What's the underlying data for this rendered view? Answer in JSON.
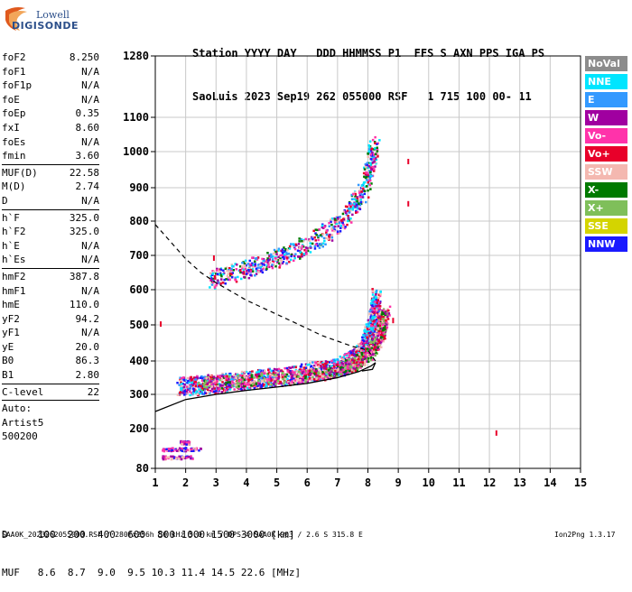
{
  "logo": {
    "line1": "Lowell",
    "line2": "DIGISONDE"
  },
  "header": {
    "line1": "Station YYYY DAY   DDD HHMMSS P1  FFS S AXN PPS IGA PS",
    "line2": "SaoLuis 2023 Sep19 262 055000 RSF   1 715 100 00- 11"
  },
  "params": [
    {
      "name": "foF2",
      "value": "8.250"
    },
    {
      "name": "foF1",
      "value": "N/A"
    },
    {
      "name": "foF1p",
      "value": "N/A"
    },
    {
      "name": "foE",
      "value": "N/A"
    },
    {
      "name": "foEp",
      "value": "0.35"
    },
    {
      "name": "fxI",
      "value": "8.60"
    },
    {
      "name": "foEs",
      "value": "N/A"
    },
    {
      "name": "fmin",
      "value": "3.60"
    },
    {
      "sep": true
    },
    {
      "name": "MUF(D)",
      "value": "22.58"
    },
    {
      "name": "M(D)",
      "value": "2.74"
    },
    {
      "name": "D",
      "value": "N/A"
    },
    {
      "sep": true
    },
    {
      "name": "h`F",
      "value": "325.0"
    },
    {
      "name": "h`F2",
      "value": "325.0"
    },
    {
      "name": "h`E",
      "value": "N/A"
    },
    {
      "name": "h`Es",
      "value": "N/A"
    },
    {
      "sep": true
    },
    {
      "name": "hmF2",
      "value": "387.8"
    },
    {
      "name": "hmF1",
      "value": "N/A"
    },
    {
      "name": "hmE",
      "value": "110.0"
    },
    {
      "name": "yF2",
      "value": "94.2"
    },
    {
      "name": "yF1",
      "value": "N/A"
    },
    {
      "name": "yE",
      "value": "20.0"
    },
    {
      "name": "B0",
      "value": "86.3"
    },
    {
      "name": "B1",
      "value": "2.80"
    },
    {
      "sep": true
    },
    {
      "name": "C-level",
      "value": "22"
    },
    {
      "sep": true
    },
    {
      "name": "Auto:",
      "value": ""
    },
    {
      "name": "Artist5",
      "value": ""
    },
    {
      "name": "500200",
      "value": ""
    }
  ],
  "legend": [
    {
      "label": "NoVal",
      "bg": "#8c8c8c",
      "fg": "#ffffff"
    },
    {
      "label": "NNE",
      "bg": "#00e5ff",
      "fg": "#ffffff"
    },
    {
      "label": "E",
      "bg": "#3399ff",
      "fg": "#ffffff"
    },
    {
      "label": "W",
      "bg": "#a000a0",
      "fg": "#ffffff"
    },
    {
      "label": "Vo-",
      "bg": "#ff33aa",
      "fg": "#ffffff"
    },
    {
      "label": "Vo+",
      "bg": "#e8002a",
      "fg": "#ffffff"
    },
    {
      "label": "SSW",
      "bg": "#f4b8b0",
      "fg": "#ffffff"
    },
    {
      "label": "X-",
      "bg": "#007a00",
      "fg": "#ffffff"
    },
    {
      "label": "X+",
      "bg": "#7fbf5a",
      "fg": "#ffffff"
    },
    {
      "label": "SSE",
      "bg": "#d4d400",
      "fg": "#ffffff"
    },
    {
      "label": "NNW",
      "bg": "#1a1aff",
      "fg": "#ffffff"
    }
  ],
  "chart_data": {
    "type": "scatter",
    "xlabel": "",
    "ylabel": "",
    "xlim": [
      1,
      15
    ],
    "ylim": [
      80,
      1280
    ],
    "xticks": [
      "1",
      "2",
      "3",
      "4",
      "5",
      "6",
      "7",
      "8",
      "9",
      "10",
      "11",
      "12",
      "13",
      "14",
      "15"
    ],
    "yticks": [
      "80",
      "200",
      "300",
      "400",
      "500",
      "600",
      "700",
      "800",
      "900",
      "1000",
      "1100",
      "1280"
    ],
    "ytick_values": [
      80,
      200,
      300,
      400,
      500,
      600,
      700,
      800,
      900,
      1000,
      1100,
      1280
    ],
    "grid": true,
    "legend_position": "right",
    "traces": [
      {
        "name": "F2 o-trace",
        "points": [
          [
            1.8,
            325
          ],
          [
            2.5,
            330
          ],
          [
            3.5,
            340
          ],
          [
            4.5,
            350
          ],
          [
            5.5,
            360
          ],
          [
            6.5,
            375
          ],
          [
            7.2,
            390
          ],
          [
            7.6,
            410
          ],
          [
            7.9,
            440
          ],
          [
            8.05,
            480
          ],
          [
            8.2,
            530
          ],
          [
            8.25,
            580
          ]
        ]
      },
      {
        "name": "F2 x-trace",
        "points": [
          [
            2.5,
            335
          ],
          [
            4,
            345
          ],
          [
            5.5,
            355
          ],
          [
            6.8,
            372
          ],
          [
            7.6,
            395
          ],
          [
            8.1,
            430
          ],
          [
            8.4,
            480
          ],
          [
            8.55,
            540
          ]
        ]
      },
      {
        "name": "second hop",
        "points": [
          [
            2.8,
            630
          ],
          [
            3.5,
            650
          ],
          [
            4.5,
            680
          ],
          [
            5.5,
            710
          ],
          [
            6.5,
            760
          ],
          [
            7.3,
            820
          ],
          [
            7.8,
            890
          ],
          [
            8.05,
            960
          ],
          [
            8.2,
            1020
          ]
        ]
      },
      {
        "name": "Es traces",
        "points": [
          [
            1.2,
            140
          ],
          [
            2.5,
            140
          ],
          [
            1.2,
            115
          ],
          [
            2.2,
            115
          ],
          [
            1.8,
            160
          ],
          [
            2.1,
            175
          ]
        ]
      }
    ],
    "profile_solid": [
      [
        1,
        250
      ],
      [
        2,
        285
      ],
      [
        3,
        300
      ],
      [
        4,
        312
      ],
      [
        5,
        322
      ],
      [
        6,
        333
      ],
      [
        7,
        350
      ],
      [
        7.7,
        368
      ],
      [
        8.1,
        385
      ],
      [
        8.25,
        395
      ],
      [
        8.15,
        375
      ],
      [
        7.8,
        370
      ]
    ],
    "profile_dashed": [
      [
        1,
        790
      ],
      [
        1.5,
        740
      ],
      [
        2,
        690
      ],
      [
        2.5,
        650
      ],
      [
        3,
        620
      ],
      [
        3.5,
        595
      ],
      [
        4,
        570
      ],
      [
        4.5,
        550
      ],
      [
        5,
        530
      ],
      [
        5.5,
        510
      ],
      [
        6,
        490
      ],
      [
        6.5,
        470
      ],
      [
        7,
        455
      ],
      [
        7.5,
        440
      ],
      [
        8,
        430
      ],
      [
        8.25,
        400
      ]
    ],
    "outliers": [
      [
        9.3,
        980
      ],
      [
        9.3,
        860
      ],
      [
        12.2,
        195
      ],
      [
        1.15,
        510
      ],
      [
        8.8,
        520
      ],
      [
        2.9,
        700
      ]
    ]
  },
  "bottom": {
    "line1": "D     100  200  400  600  800 1000 1500 3000 [km]",
    "line2": "MUF   8.6  8.7  9.0  9.5 10.3 11.4 14.5 22.6 [MHz]"
  },
  "footer": "SAA0K_2023262055000.RSF / 280fx256h 50 kHz 5.0 km / DPS-4 SAA0K 903 / 2.6 S 315.8 E",
  "version": "Ion2Png 1.3.17"
}
